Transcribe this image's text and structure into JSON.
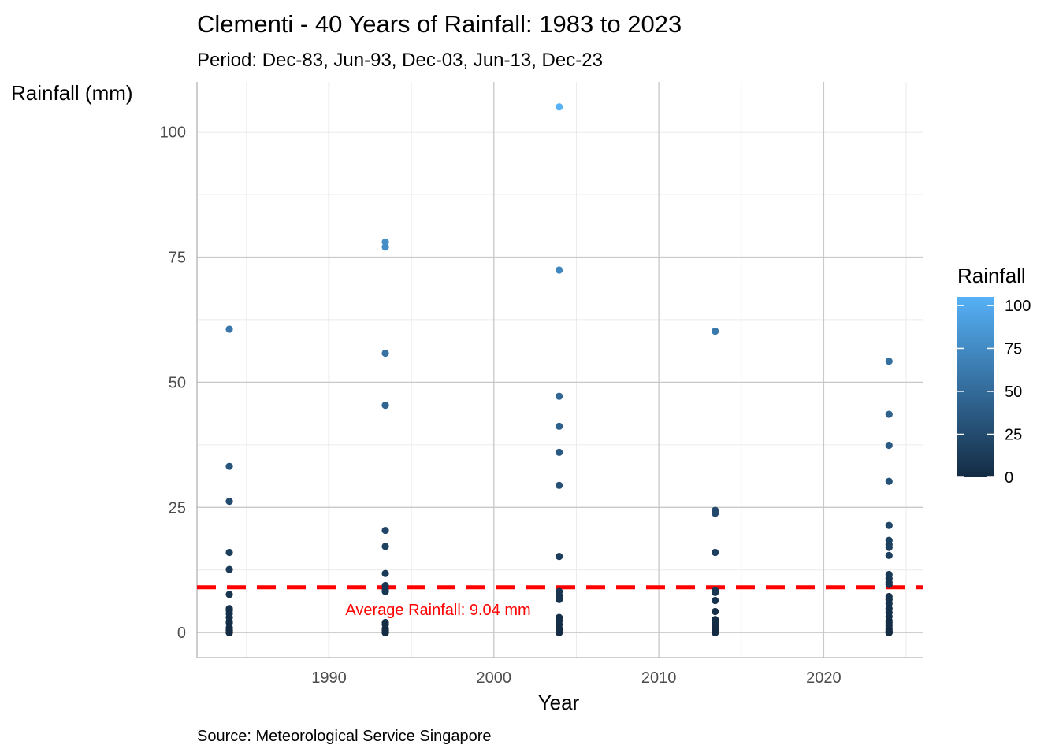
{
  "chart_data": {
    "type": "scatter",
    "title": "Clementi - 40 Years of Rainfall: 1983 to 2023",
    "subtitle": "Period: Dec-83, Jun-93, Dec-03, Jun-13, Dec-23",
    "xlabel": "Year",
    "ylabel": "Rainfall (mm)",
    "caption": "Source: Meteorological Service Singapore",
    "xlim": [
      1982,
      2026
    ],
    "ylim": [
      -5,
      110
    ],
    "x_ticks": [
      1990,
      2000,
      2010,
      2020
    ],
    "y_ticks": [
      0,
      25,
      50,
      75,
      100
    ],
    "grid": true,
    "legend": {
      "title": "Rainfall",
      "placement": "right",
      "ticks": [
        0,
        25,
        50,
        75,
        100
      ],
      "gradient": [
        "#132B43",
        "#56B1F7"
      ]
    },
    "reference_line": {
      "value": 9.04,
      "label": "Average Rainfall: 9.04 mm",
      "color": "#FF0000",
      "style": "dashed"
    },
    "series": [
      {
        "x": 1983.96,
        "values": [
          60.6,
          33.2,
          26.2,
          16.0,
          12.6,
          7.6,
          4.8,
          4.4,
          3.8,
          3.0,
          2.2,
          1.8,
          1.0,
          0.6,
          0.4,
          0.2,
          0.0,
          0.0
        ]
      },
      {
        "x": 1993.42,
        "values": [
          78.0,
          77.0,
          55.8,
          45.4,
          20.4,
          17.2,
          11.8,
          9.4,
          8.6,
          8.2,
          2.0,
          1.6,
          0.8,
          0.4,
          0.2,
          0.0,
          0.0
        ]
      },
      {
        "x": 2003.96,
        "values": [
          105.0,
          72.4,
          47.2,
          41.2,
          36.0,
          29.4,
          15.2,
          8.2,
          7.4,
          7.0,
          6.6,
          3.0,
          2.4,
          1.6,
          0.8,
          0.4,
          0.2,
          0.0,
          0.0
        ]
      },
      {
        "x": 2013.42,
        "values": [
          60.2,
          24.4,
          23.8,
          16.0,
          8.4,
          8.0,
          6.4,
          4.2,
          2.6,
          2.0,
          1.4,
          0.8,
          0.4,
          0.2,
          0.0,
          0.0
        ]
      },
      {
        "x": 2023.96,
        "values": [
          54.2,
          43.6,
          37.4,
          30.2,
          21.4,
          18.4,
          17.6,
          17.0,
          15.4,
          11.6,
          10.8,
          10.0,
          9.6,
          7.2,
          6.6,
          5.8,
          4.8,
          4.0,
          3.2,
          2.4,
          2.0,
          1.4,
          0.8,
          0.4,
          0.2,
          0.0,
          0.0
        ]
      }
    ]
  }
}
